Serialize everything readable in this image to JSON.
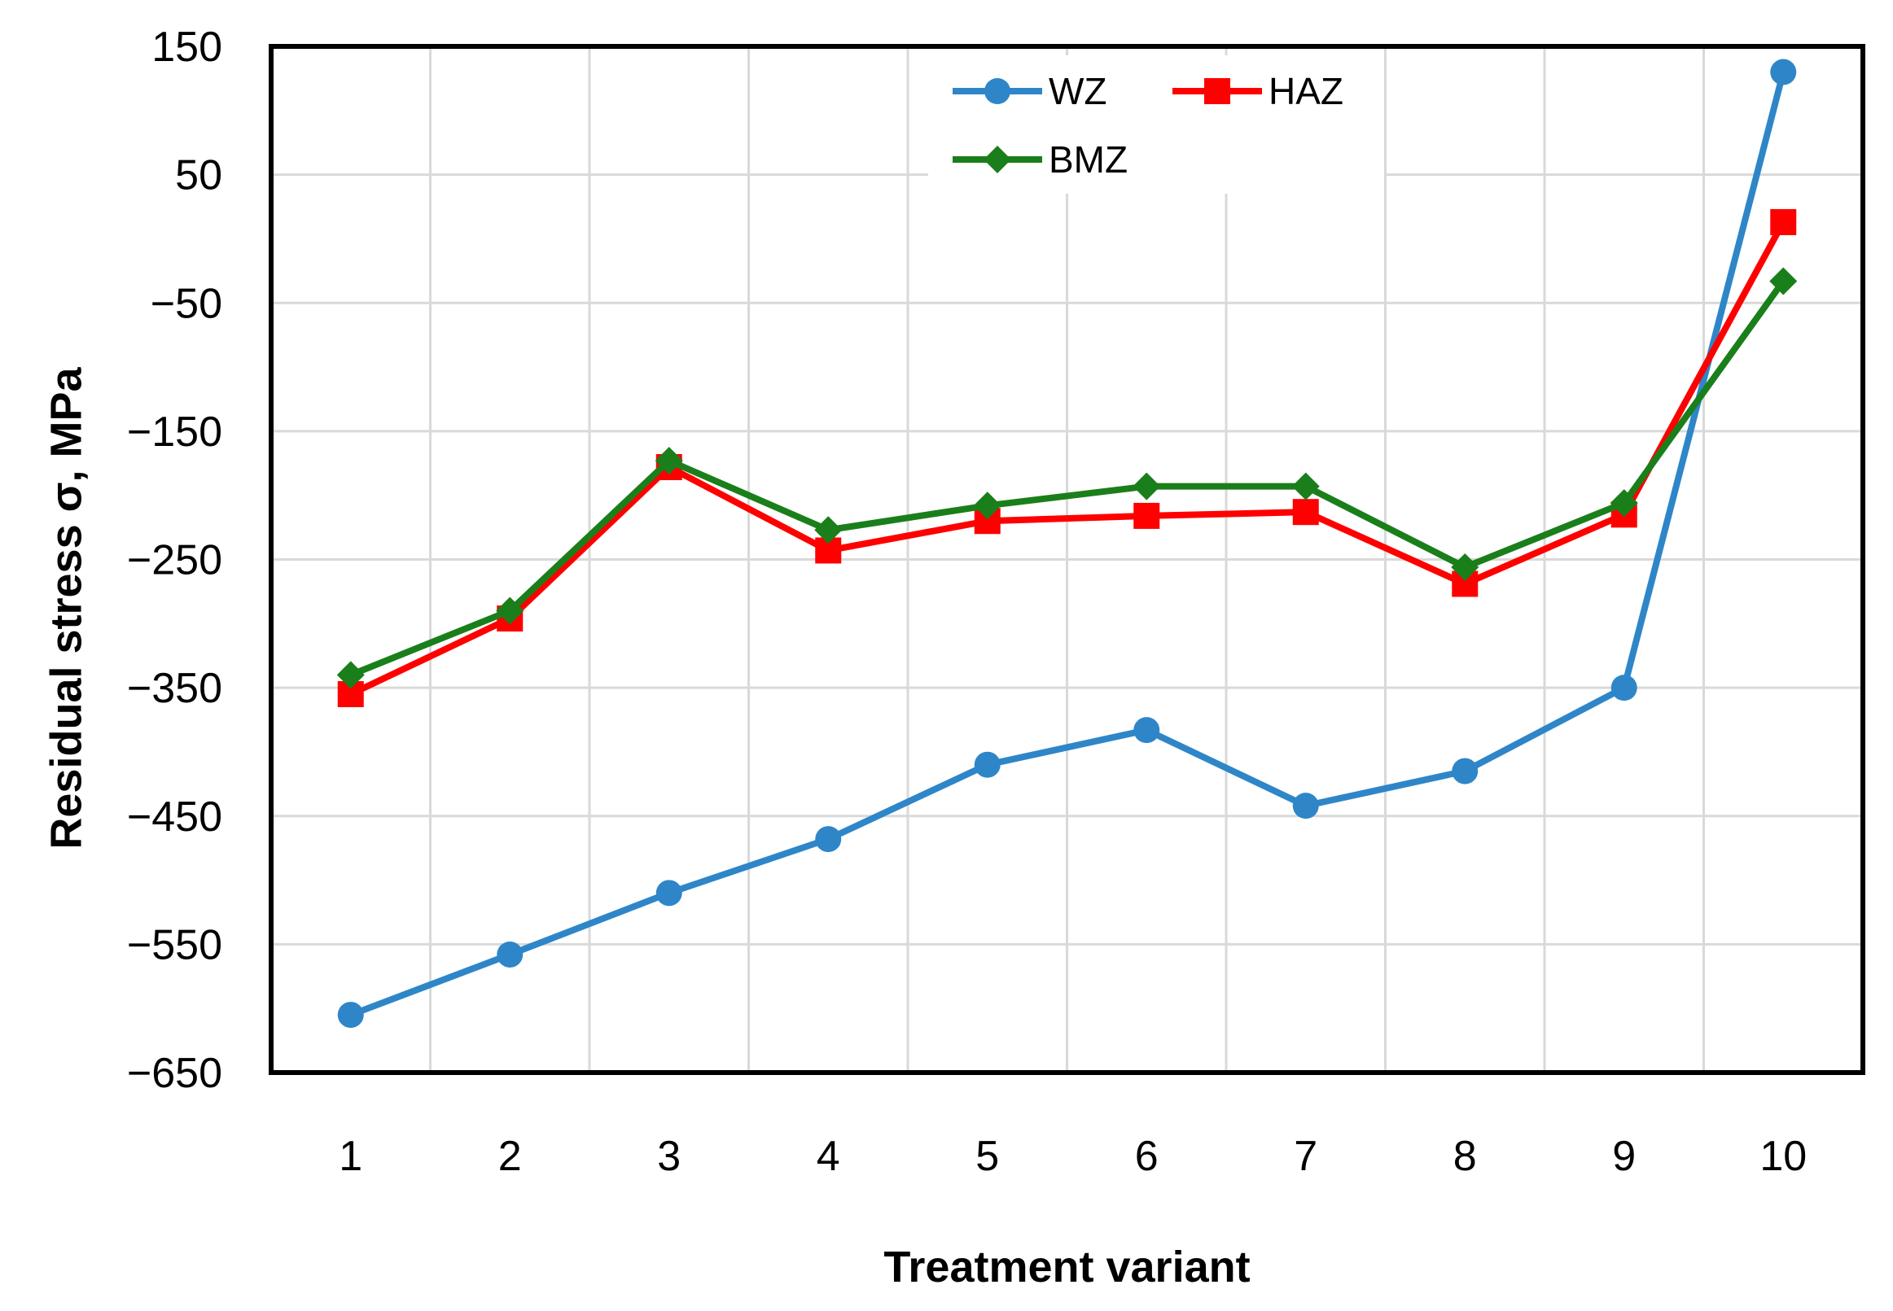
{
  "chart_data": {
    "type": "line",
    "title": "",
    "xlabel": "Treatment variant",
    "ylabel": "Residual stress σ, MPa",
    "categories": [
      "1",
      "2",
      "3",
      "4",
      "5",
      "6",
      "7",
      "8",
      "9",
      "10"
    ],
    "ylim": [
      -650,
      150
    ],
    "yticks": [
      150,
      50,
      -50,
      -150,
      -250,
      -350,
      -450,
      -550,
      -650
    ],
    "ytick_labels": [
      "150",
      "50",
      "−50",
      "−150",
      "−250",
      "−350",
      "−450",
      "−550",
      "−650"
    ],
    "grid": true,
    "legend_position": "top-right",
    "series": [
      {
        "name": "WZ",
        "color": "#2e86c8",
        "marker": "circle",
        "values": [
          -605,
          -558,
          -510,
          -468,
          -410,
          -383,
          -442,
          -415,
          -350,
          130
        ]
      },
      {
        "name": "HAZ",
        "color": "#ff0000",
        "marker": "square",
        "values": [
          -355,
          -296,
          -178,
          -243,
          -220,
          -216,
          -213,
          -269,
          -215,
          13
        ]
      },
      {
        "name": "BMZ",
        "color": "#1a7f1a",
        "marker": "diamond",
        "values": [
          -340,
          -290,
          -173,
          -227,
          -208,
          -193,
          -193,
          -256,
          -206,
          -33
        ]
      }
    ]
  }
}
